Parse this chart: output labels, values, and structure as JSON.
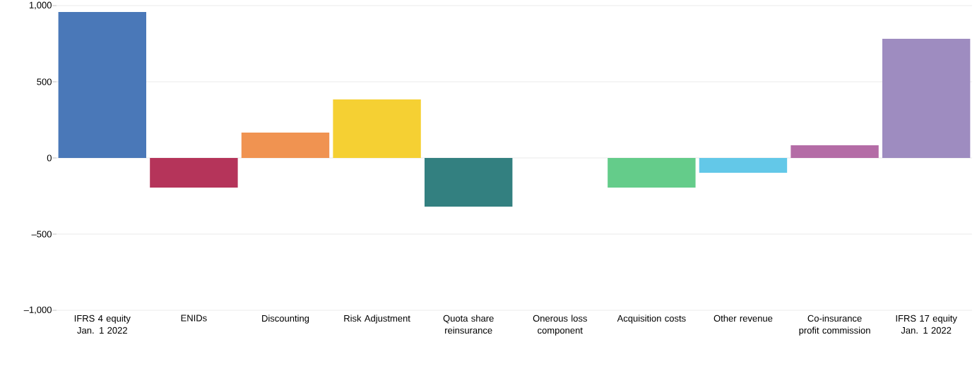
{
  "chart_data": {
    "type": "bar",
    "categories": [
      "IFRS 4 equity Jan. 1 2022",
      "ENIDs",
      "Discounting",
      "Risk Adjustment",
      "Quota share reinsurance",
      "Onerous loss component",
      "Acquisition costs",
      "Other revenue",
      "Co-insurance profit commission",
      "IFRS 17 equity Jan. 1 2022"
    ],
    "values": [
      958,
      -194,
      167,
      384,
      -319,
      0,
      -194,
      -97,
      83,
      782
    ],
    "colors": [
      "#4a78b8",
      "#b5345a",
      "#f09351",
      "#f5d033",
      "#338080",
      "#7f7f7f",
      "#64cc8a",
      "#63c8e8",
      "#b46ca6",
      "#9e8cc0"
    ],
    "ylim": [
      -1000,
      1000
    ],
    "yticks": [
      {
        "value": -1000,
        "label": "–1,000"
      },
      {
        "value": -500,
        "label": "–500"
      },
      0,
      500,
      {
        "value": 1000,
        "label": "1,000"
      }
    ],
    "grid": "y"
  }
}
